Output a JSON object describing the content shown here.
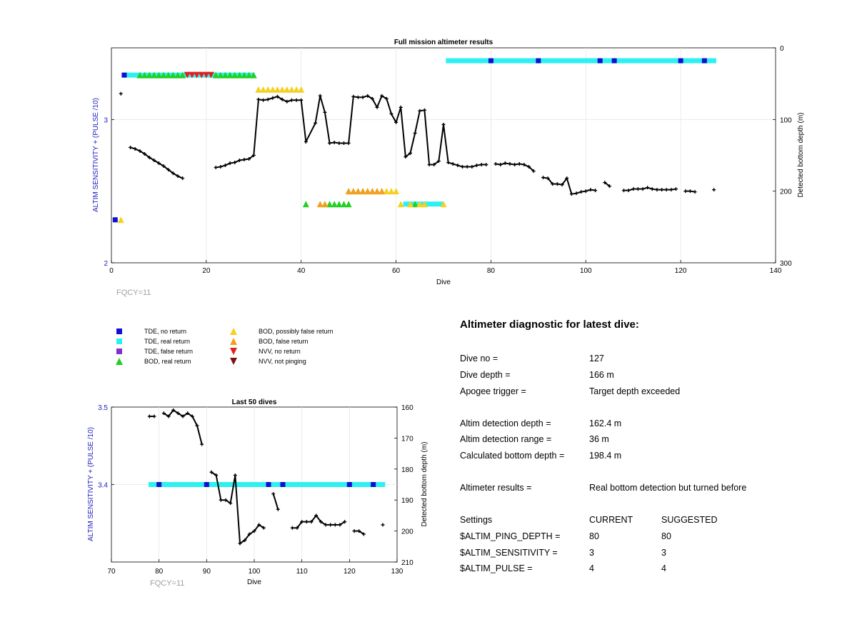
{
  "colors": {
    "tde_no_return": "#1010d0",
    "tde_real_return": "#2ef0f0",
    "tde_false_return": "#8030d0",
    "bod_real_return": "#22d022",
    "bod_possibly_false": "#f5d020",
    "bod_false_return": "#f0a020",
    "nvv_no_return": "#e02020",
    "nvv_not_pinging": "#801010",
    "left_axis": "#2020c0",
    "freq_label": "#a0a0a0"
  },
  "top_chart": {
    "title": "Full mission altimeter results",
    "xlabel": "Dive",
    "ylabel_left": "ALTIM SENSITIVITY + (PULSE /10)",
    "ylabel_right": "Detected bottom depth (m)",
    "freq_label": "FQCY=11",
    "xlim": [
      0,
      140
    ],
    "xticks": [
      0,
      20,
      40,
      60,
      80,
      100,
      120,
      140
    ],
    "left_ylim": [
      2,
      3.5
    ],
    "left_yticks": [
      2,
      3
    ],
    "right_ylim_reversed": [
      0,
      300
    ],
    "right_yticks": [
      0,
      100,
      200,
      300
    ]
  },
  "bottom_chart": {
    "title": "Last 50 dives",
    "xlabel": "Dive",
    "ylabel_left": "ALTIM SENSITIVITY + (PULSE /10)",
    "ylabel_right": "Detected bottom depth (m)",
    "freq_label": "FQCY=11",
    "xlim": [
      70,
      130
    ],
    "xticks": [
      70,
      80,
      90,
      100,
      110,
      120,
      130
    ],
    "left_ylim": [
      3.3,
      3.5
    ],
    "left_yticks": [
      3.4,
      3.5
    ],
    "right_ylim_reversed": [
      160,
      210
    ],
    "right_yticks": [
      160,
      170,
      180,
      190,
      200,
      210
    ]
  },
  "chart_data": [
    {
      "type": "line",
      "title": "Full mission altimeter results",
      "xlabel": "Dive",
      "ylabel": "Detected bottom depth (m)",
      "xlim": [
        0,
        140
      ],
      "ylim": [
        300,
        0
      ],
      "series": [
        {
          "segments": [
            [
              [
                2,
                64
              ]
            ],
            [
              [
                4,
                139
              ],
              [
                5,
                141
              ],
              [
                6,
                144
              ],
              [
                7,
                148
              ],
              [
                8,
                153
              ],
              [
                9,
                157
              ],
              [
                10,
                161
              ],
              [
                11,
                165
              ],
              [
                12,
                170
              ],
              [
                13,
                175
              ],
              [
                14,
                179
              ],
              [
                15,
                182
              ]
            ],
            [
              [
                22,
                167
              ],
              [
                23,
                166
              ],
              [
                24,
                164
              ],
              [
                25,
                161
              ],
              [
                26,
                160
              ],
              [
                27,
                157
              ],
              [
                28,
                156
              ],
              [
                29,
                155
              ],
              [
                30,
                150
              ],
              [
                31,
                72
              ],
              [
                32,
                73
              ],
              [
                33,
                72
              ],
              [
                34,
                70
              ],
              [
                35,
                68
              ],
              [
                36,
                72
              ],
              [
                37,
                75
              ],
              [
                38,
                73
              ],
              [
                39,
                73
              ],
              [
                40,
                73
              ],
              [
                41,
                131
              ],
              [
                43,
                105
              ],
              [
                44,
                67
              ],
              [
                45,
                90
              ],
              [
                46,
                133
              ],
              [
                47,
                132
              ],
              [
                48,
                133
              ],
              [
                49,
                133
              ],
              [
                50,
                133
              ],
              [
                51,
                68
              ],
              [
                52,
                69
              ],
              [
                53,
                69
              ],
              [
                54,
                67
              ],
              [
                55,
                71
              ],
              [
                56,
                83
              ],
              [
                57,
                67
              ],
              [
                58,
                71
              ],
              [
                59,
                92
              ],
              [
                60,
                104
              ],
              [
                61,
                83
              ],
              [
                62,
                152
              ],
              [
                63,
                147
              ],
              [
                64,
                119
              ],
              [
                65,
                88
              ],
              [
                66,
                87
              ],
              [
                67,
                163
              ],
              [
                68,
                163
              ],
              [
                69,
                158
              ],
              [
                70,
                107
              ],
              [
                71,
                160
              ],
              [
                72,
                162
              ],
              [
                73,
                164
              ],
              [
                74,
                166
              ],
              [
                75,
                166
              ],
              [
                76,
                166
              ],
              [
                77,
                164
              ],
              [
                78,
                163
              ],
              [
                79,
                163
              ]
            ],
            [
              [
                81,
                162
              ],
              [
                82,
                163
              ],
              [
                83,
                161
              ],
              [
                84,
                162
              ],
              [
                85,
                163
              ],
              [
                86,
                162
              ],
              [
                87,
                163
              ],
              [
                88,
                166
              ],
              [
                89,
                172
              ]
            ],
            [
              [
                91,
                181
              ],
              [
                92,
                182
              ],
              [
                93,
                190
              ],
              [
                94,
                190
              ],
              [
                95,
                191
              ],
              [
                96,
                182
              ],
              [
                97,
                204
              ],
              [
                98,
                203
              ],
              [
                99,
                201
              ],
              [
                100,
                200
              ],
              [
                101,
                198
              ],
              [
                102,
                199
              ]
            ],
            [
              [
                104,
                188
              ],
              [
                105,
                193
              ]
            ],
            [
              [
                108,
                199
              ],
              [
                109,
                199
              ],
              [
                110,
                197
              ],
              [
                111,
                197
              ],
              [
                112,
                197
              ],
              [
                113,
                195
              ],
              [
                114,
                197
              ],
              [
                115,
                198
              ],
              [
                116,
                198
              ],
              [
                117,
                198
              ],
              [
                118,
                198
              ],
              [
                119,
                197
              ]
            ],
            [
              [
                121,
                200
              ],
              [
                122,
                200
              ],
              [
                123,
                201
              ]
            ],
            [
              [
                127,
                198
              ]
            ]
          ]
        }
      ],
      "markers": {
        "tde_bars": [
          {
            "level": 3.31,
            "from": 2.5,
            "to": 30,
            "no_return_at": [
              2.7
            ]
          },
          {
            "level": 3.41,
            "from": 70.5,
            "to": 127.5,
            "no_return_at": [
              80,
              90,
              103,
              106,
              120,
              125
            ]
          },
          {
            "level": 2.3,
            "from": 0.5,
            "to": 1.2,
            "no_return_at": [
              0.8
            ]
          },
          {
            "level": 2.41,
            "from": 61.5,
            "to": 70,
            "no_return_at": []
          }
        ],
        "bod_rows": [
          {
            "level": 3.31,
            "real_return": [
              6,
              7,
              8,
              9,
              10,
              11,
              12,
              13,
              14,
              15,
              22,
              23,
              24,
              25,
              26,
              27,
              28,
              29,
              30
            ],
            "nvv_no_return": [
              16,
              17,
              18,
              19,
              20,
              21
            ]
          },
          {
            "level": 3.21,
            "possibly_false": [
              31,
              32,
              33,
              34,
              35,
              36,
              37,
              38,
              39,
              40
            ]
          },
          {
            "level": 2.5,
            "possibly_false": [
              50,
              51,
              52,
              53,
              54,
              55,
              56,
              57,
              58,
              59,
              60
            ],
            "false_return": [
              50,
              51,
              52,
              53,
              54,
              55,
              56,
              57
            ]
          },
          {
            "level": 2.41,
            "real_return": [
              41,
              46,
              47,
              48,
              49,
              50,
              64
            ],
            "possibly_false": [
              45,
              61,
              63,
              65,
              66,
              70
            ],
            "false_return": [
              44,
              45
            ]
          },
          {
            "level": 2.3,
            "possibly_false": [
              2
            ]
          }
        ]
      }
    },
    {
      "type": "line",
      "title": "Last 50 dives",
      "xlabel": "Dive",
      "ylabel": "Detected bottom depth (m)",
      "xlim": [
        70,
        130
      ],
      "ylim": [
        210,
        160
      ]
    }
  ],
  "legend": {
    "items": [
      {
        "label": "TDE, no return",
        "symbol": "square",
        "color_key": "tde_no_return"
      },
      {
        "label": "TDE, real return",
        "symbol": "square",
        "color_key": "tde_real_return"
      },
      {
        "label": "TDE, false return",
        "symbol": "square",
        "color_key": "tde_false_return"
      },
      {
        "label": "BOD, real return",
        "symbol": "triangle-up",
        "color_key": "bod_real_return"
      },
      {
        "label": "BOD, possibly false return",
        "symbol": "triangle-up",
        "color_key": "bod_possibly_false"
      },
      {
        "label": "BOD, false return",
        "symbol": "triangle-up",
        "color_key": "bod_false_return"
      },
      {
        "label": "NVV, no return",
        "symbol": "triangle-down",
        "color_key": "nvv_no_return"
      },
      {
        "label": "NVV, not pinging",
        "symbol": "triangle-down",
        "color_key": "nvv_not_pinging"
      }
    ]
  },
  "diagnostic": {
    "title": "Altimeter diagnostic for latest dive:",
    "dive_no_label": "Dive no =",
    "dive_no_value": "127",
    "dive_depth_label": "Dive depth =",
    "dive_depth_value": "166 m",
    "apogee_label": "Apogee trigger =",
    "apogee_value": "Target depth exceeded",
    "det_depth_label": "Altim detection depth =",
    "det_depth_value": "162.4 m",
    "det_range_label": "Altim detection range =",
    "det_range_value": "36 m",
    "calc_depth_label": "Calculated bottom depth =",
    "calc_depth_value": "198.4 m",
    "results_label": "Altimeter results =",
    "results_value": "Real bottom detection but turned before",
    "settings_label": "Settings",
    "current_label": "CURRENT",
    "suggested_label": "SUGGESTED",
    "ping_depth_label": "$ALTIM_PING_DEPTH =",
    "ping_depth_current": "80",
    "ping_depth_suggested": "80",
    "sensitivity_label": "$ALTIM_SENSITIVITY =",
    "sensitivity_current": "3",
    "sensitivity_suggested": "3",
    "pulse_label": "$ALTIM_PULSE =",
    "pulse_current": "4",
    "pulse_suggested": "4"
  }
}
